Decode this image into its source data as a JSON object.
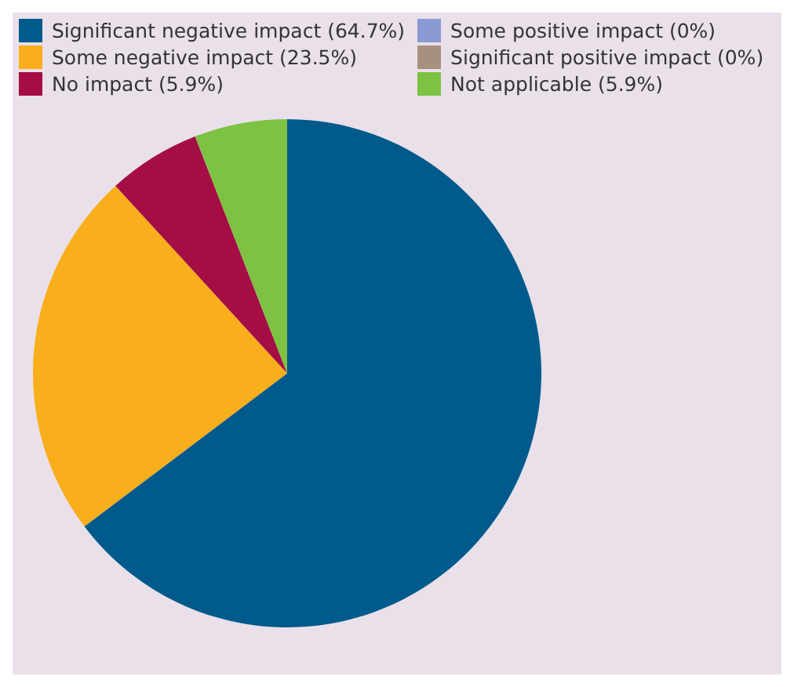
{
  "chart_data": {
    "type": "pie",
    "categories": [
      "Significant negative impact (64.7%)",
      "Some negative impact (23.5%)",
      "No impact (5.9%)",
      "Some positive impact (0%)",
      "Significant positive impact (0%)",
      "Not applicable (5.9%)"
    ],
    "values": [
      64.7,
      23.5,
      5.9,
      0,
      0,
      5.9
    ],
    "colors": [
      "#005a8c",
      "#f9ae1c",
      "#a50d45",
      "#8a9bd4",
      "#a89080",
      "#7dc242"
    ],
    "legend": "top"
  }
}
